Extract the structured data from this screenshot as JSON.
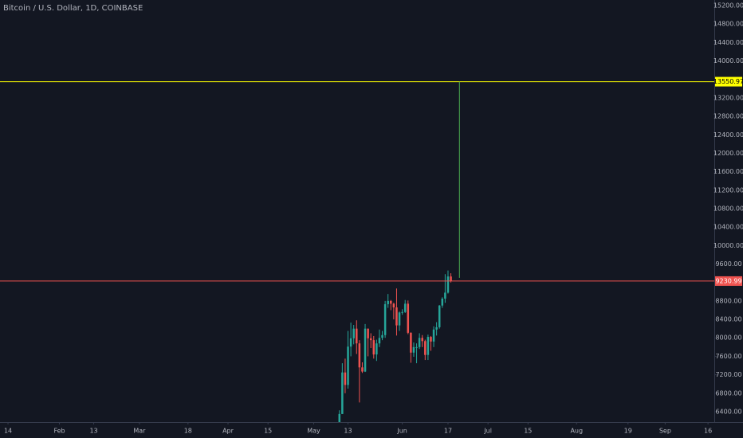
{
  "chart_data": {
    "type": "candlestick",
    "title": "Bitcoin / U.S. Dollar, 1D, COINBASE",
    "up_color": "#26a69a",
    "down_color": "#ef5350",
    "grid": false,
    "xlim": [
      11.2,
      261.2
    ],
    "xticks": [
      {
        "value": 14,
        "label": "14"
      },
      {
        "value": 32,
        "label": "Feb"
      },
      {
        "value": 44,
        "label": "13"
      },
      {
        "value": 60,
        "label": "Mar"
      },
      {
        "value": 77,
        "label": "18"
      },
      {
        "value": 91,
        "label": "Apr"
      },
      {
        "value": 105,
        "label": "15"
      },
      {
        "value": 121,
        "label": "May"
      },
      {
        "value": 133,
        "label": "13"
      },
      {
        "value": 152,
        "label": "Jun"
      },
      {
        "value": 168,
        "label": "17"
      },
      {
        "value": 182,
        "label": "Jul"
      },
      {
        "value": 196,
        "label": "15"
      },
      {
        "value": 213,
        "label": "Aug"
      },
      {
        "value": 231,
        "label": "19"
      },
      {
        "value": 244,
        "label": "Sep"
      },
      {
        "value": 259,
        "label": "16"
      }
    ],
    "ylim": [
      6175,
      15321
    ],
    "yticks": [
      {
        "value": 6400,
        "label": "6400.00"
      },
      {
        "value": 6800,
        "label": "6800.00"
      },
      {
        "value": 7200,
        "label": "7200.00"
      },
      {
        "value": 7600,
        "label": "7600.00"
      },
      {
        "value": 8000,
        "label": "8000.00"
      },
      {
        "value": 8400,
        "label": "8400.00"
      },
      {
        "value": 8800,
        "label": "8800.00"
      },
      {
        "value": 9600,
        "label": "9600.00"
      },
      {
        "value": 10000,
        "label": "10000.00"
      },
      {
        "value": 10400,
        "label": "10400.00"
      },
      {
        "value": 10800,
        "label": "10800.00"
      },
      {
        "value": 11200,
        "label": "11200.00"
      },
      {
        "value": 11600,
        "label": "11600.00"
      },
      {
        "value": 12000,
        "label": "12000.00"
      },
      {
        "value": 12400,
        "label": "12400.00"
      },
      {
        "value": 12800,
        "label": "12800.00"
      },
      {
        "value": 13200,
        "label": "13200.00"
      },
      {
        "value": 14000,
        "label": "14000.00"
      },
      {
        "value": 14400,
        "label": "14400.00"
      },
      {
        "value": 14800,
        "label": "14800.00"
      },
      {
        "value": 15200,
        "label": "15200.00"
      }
    ],
    "x": [
      130,
      131,
      132,
      133,
      134,
      135,
      136,
      137,
      138,
      139,
      140,
      141,
      142,
      143,
      144,
      145,
      146,
      147,
      148,
      149,
      150,
      151,
      152,
      153,
      154,
      155,
      156,
      157,
      158,
      159,
      160,
      161,
      162,
      163,
      164,
      165,
      166,
      167,
      168,
      169
    ],
    "open": [
      6150,
      6350,
      7250,
      6980,
      7810,
      7990,
      8200,
      7880,
      7360,
      7270,
      8200,
      7990,
      7950,
      7640,
      7880,
      8000,
      8060,
      8730,
      8800,
      8740,
      8660,
      8270,
      8550,
      8560,
      8740,
      8110,
      7680,
      7800,
      7800,
      8000,
      7930,
      7630,
      8020,
      7920,
      8180,
      8230,
      8700,
      8850,
      8980,
      9330
    ],
    "high": [
      6430,
      7450,
      7550,
      8150,
      8330,
      8280,
      8380,
      7950,
      7470,
      8300,
      8200,
      8100,
      8040,
      7960,
      8180,
      8150,
      8800,
      8950,
      8820,
      8760,
      9070,
      8570,
      8620,
      8820,
      8810,
      8120,
      7900,
      7880,
      8100,
      8060,
      7960,
      8070,
      8040,
      8250,
      8340,
      8710,
      8880,
      9380,
      9460,
      9400
    ],
    "low": [
      6140,
      6350,
      6800,
      6900,
      7600,
      7860,
      7650,
      6600,
      7240,
      7260,
      7600,
      7780,
      7550,
      7500,
      7800,
      7950,
      8000,
      8650,
      8600,
      8400,
      8050,
      8150,
      8500,
      8540,
      8080,
      7460,
      7590,
      7450,
      7760,
      7800,
      7520,
      7520,
      7720,
      7800,
      8050,
      8200,
      8650,
      8760,
      8960,
      9200
    ],
    "close": [
      6350,
      7250,
      6980,
      7810,
      7990,
      8200,
      7880,
      7360,
      7270,
      8200,
      7990,
      7950,
      7640,
      7880,
      8000,
      8060,
      8730,
      8800,
      8740,
      8660,
      8270,
      8550,
      8560,
      8740,
      8110,
      7680,
      7800,
      7800,
      8000,
      7930,
      7630,
      8020,
      7920,
      8180,
      8230,
      8700,
      8850,
      8980,
      9330,
      9230.99
    ],
    "levels": [
      {
        "value": 13550.97,
        "color": "#ffff00"
      },
      {
        "value": 9230.99,
        "color": "#ef5350"
      }
    ],
    "projection": {
      "x": 172,
      "from": 9300,
      "to": 13550.97,
      "color": "#4caf50"
    }
  }
}
